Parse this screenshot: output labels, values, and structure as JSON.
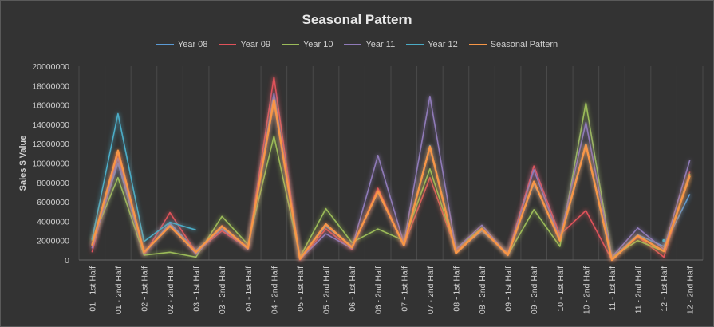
{
  "chart_data": {
    "type": "line",
    "title": "Seasonal Pattern",
    "ylabel": "Sales $ Value",
    "xlabel": "",
    "ylim": [
      0,
      20000000
    ],
    "yticks": [
      0,
      2000000,
      4000000,
      6000000,
      8000000,
      10000000,
      12000000,
      14000000,
      16000000,
      18000000,
      20000000
    ],
    "grid": "vertical",
    "legend": "top",
    "categories": [
      "01 - 1st Half",
      "01 - 2nd Half",
      "02 - 1st Half",
      "02 - 2nd Half",
      "03 - 1st Half",
      "03 - 2nd Half",
      "04 - 1st Half",
      "04 - 2nd Half",
      "05 - 1st Half",
      "05 - 2nd Half",
      "06 - 1st Half",
      "06 - 2nd Half",
      "07 - 1st Half",
      "07 - 2nd Half",
      "08 - 1st Half",
      "08 - 2nd Half",
      "09 - 1st Half",
      "09 - 2nd Half",
      "10 - 1st Half",
      "10 - 2nd Half",
      "11 - 1st Half",
      "11 - 2nd Half",
      "12 - 1st Half",
      "12 - 2nd Half"
    ],
    "series": [
      {
        "name": "Year 08",
        "color": "#5b9bd5",
        "values": [
          1500000,
          10000000,
          600000,
          3800000,
          1000000,
          3200000,
          1300000,
          16500000,
          200000,
          3500000,
          1400000,
          7000000,
          1600000,
          11800000,
          900000,
          3000000,
          700000,
          7900000,
          2300000,
          12000000,
          200000,
          2600000,
          1400000,
          6800000
        ]
      },
      {
        "name": "Year 09",
        "color": "#e0525a",
        "values": [
          800000,
          11000000,
          500000,
          4900000,
          800000,
          3000000,
          1200000,
          18900000,
          0,
          3200000,
          1100000,
          7400000,
          1500000,
          8500000,
          1000000,
          3200000,
          600000,
          9700000,
          2600000,
          5100000,
          0,
          2400000,
          300000,
          9100000
        ]
      },
      {
        "name": "Year 10",
        "color": "#9bbb59",
        "values": [
          2000000,
          8500000,
          500000,
          800000,
          300000,
          4500000,
          1600000,
          12800000,
          300000,
          5300000,
          1800000,
          3200000,
          2000000,
          9400000,
          1100000,
          3300000,
          500000,
          5200000,
          1400000,
          16200000,
          300000,
          2000000,
          900000,
          8900000
        ]
      },
      {
        "name": "Year 11",
        "color": "#8f7ab8",
        "values": [
          1200000,
          10500000,
          700000,
          3700000,
          600000,
          3400000,
          1100000,
          17200000,
          100000,
          2700000,
          1200000,
          10800000,
          1700000,
          16900000,
          1100000,
          3600000,
          500000,
          9300000,
          2200000,
          14200000,
          300000,
          3300000,
          1100000,
          10300000
        ]
      },
      {
        "name": "Year 12",
        "color": "#4bacc6",
        "values": [
          2100000,
          15100000,
          1900000,
          3900000,
          3100000,
          null,
          null,
          null,
          null,
          null,
          null,
          null,
          null,
          null,
          null,
          null,
          null,
          null,
          null,
          null,
          null,
          null,
          2000000,
          null
        ]
      },
      {
        "name": "Seasonal Pattern",
        "color": "#f79646",
        "values": [
          1500000,
          11300000,
          800000,
          3500000,
          800000,
          3500000,
          1200000,
          16500000,
          100000,
          3700000,
          1300000,
          7100000,
          1500000,
          11700000,
          700000,
          3200000,
          500000,
          8100000,
          2000000,
          11900000,
          0,
          2500000,
          900000,
          8700000
        ]
      }
    ]
  }
}
